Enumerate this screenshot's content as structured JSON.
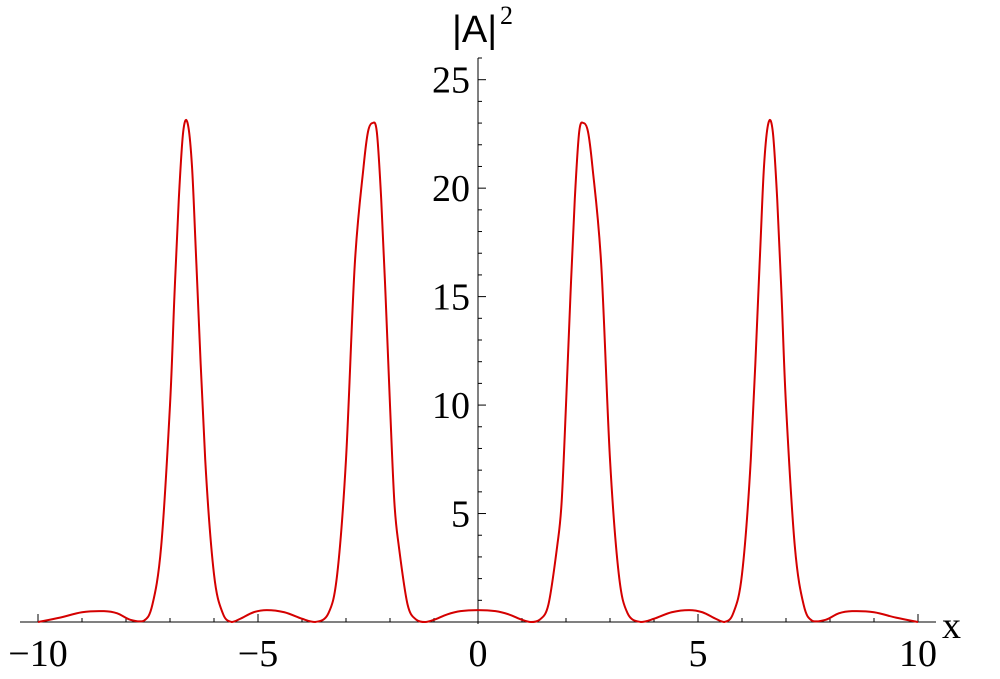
{
  "chart_data": {
    "type": "line",
    "xlabel": "x",
    "ylabel": "|A|",
    "ylabel_superscript": "2",
    "xlim": [
      -10,
      10
    ],
    "ylim": [
      0,
      26
    ],
    "x_ticks": [
      -10,
      -5,
      0,
      5,
      10
    ],
    "x_tick_labels": [
      "−10",
      "−5",
      "0",
      "5",
      "10"
    ],
    "y_ticks": [
      5,
      10,
      15,
      20,
      25
    ],
    "y_tick_labels": [
      "5",
      "10",
      "15",
      "20",
      "25"
    ],
    "grid": false,
    "series": [
      {
        "color": "#d40000",
        "x": [
          -10,
          -9.5,
          -9.0,
          -8.5,
          -8.2,
          -7.9,
          -7.6,
          -7.4,
          -7.2,
          -7.0,
          -6.9,
          -6.8,
          -6.7,
          -6.6,
          -6.5,
          -6.4,
          -6.2,
          -6.0,
          -5.8,
          -5.6,
          -5.4,
          -5.1,
          -4.8,
          -4.4,
          -4.0,
          -3.7,
          -3.4,
          -3.2,
          -3.0,
          -2.8,
          -2.6,
          -2.5,
          -2.4,
          -2.3,
          -2.2,
          -2.1,
          -2.0,
          -1.9,
          -1.8,
          -1.6,
          -1.4,
          -1.2,
          -1.0,
          -0.7,
          -0.4,
          0.0,
          0.4,
          0.7,
          1.0,
          1.2,
          1.4,
          1.6,
          1.8,
          1.9,
          2.0,
          2.1,
          2.2,
          2.3,
          2.4,
          2.5,
          2.6,
          2.8,
          3.0,
          3.2,
          3.4,
          3.7,
          4.0,
          4.4,
          4.8,
          5.1,
          5.4,
          5.6,
          5.8,
          6.0,
          6.2,
          6.4,
          6.5,
          6.6,
          6.7,
          6.8,
          6.9,
          7.0,
          7.2,
          7.4,
          7.6,
          7.9,
          8.2,
          8.5,
          9.0,
          9.5,
          10
        ],
        "y": [
          0.0,
          0.2,
          0.45,
          0.5,
          0.4,
          0.1,
          0.05,
          0.8,
          3.5,
          10.0,
          15.0,
          19.5,
          22.6,
          23.0,
          21.0,
          16.5,
          7.5,
          2.2,
          0.4,
          0.0,
          0.15,
          0.45,
          0.55,
          0.45,
          0.15,
          0.0,
          0.4,
          2.2,
          7.5,
          16.5,
          21.0,
          22.6,
          23.0,
          22.6,
          19.5,
          15.0,
          10.0,
          5.5,
          3.5,
          0.8,
          0.1,
          0.0,
          0.1,
          0.35,
          0.5,
          0.55,
          0.5,
          0.35,
          0.1,
          0.0,
          0.1,
          0.8,
          3.5,
          5.5,
          10.0,
          15.0,
          19.5,
          22.6,
          23.0,
          22.6,
          21.0,
          16.5,
          7.5,
          2.2,
          0.4,
          0.0,
          0.15,
          0.45,
          0.55,
          0.45,
          0.15,
          0.0,
          0.4,
          2.2,
          7.5,
          16.5,
          21.0,
          23.0,
          22.6,
          19.5,
          15.0,
          10.0,
          3.5,
          0.8,
          0.05,
          0.1,
          0.4,
          0.5,
          0.45,
          0.2,
          0.0
        ]
      }
    ]
  }
}
